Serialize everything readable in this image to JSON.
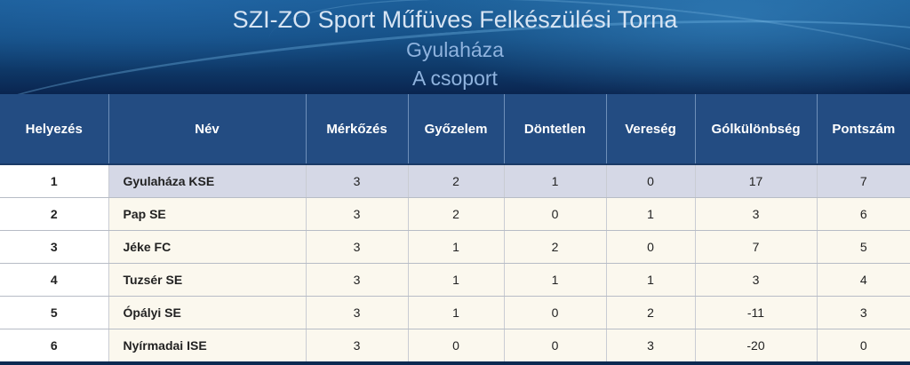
{
  "header": {
    "title": "SZI-ZO Sport Műfüves Felkészülési Torna",
    "subtitle": "Gyulaháza",
    "group": "A csoport"
  },
  "table": {
    "columns": [
      "Helyezés",
      "Név",
      "Mérkőzés",
      "Győzelem",
      "Döntetlen",
      "Vereség",
      "Gólkülönbség",
      "Pontszám"
    ],
    "rows": [
      {
        "rank": "1",
        "name": "Gyulaháza KSE",
        "played": "3",
        "won": "2",
        "drawn": "1",
        "lost": "0",
        "goal_diff": "17",
        "points": "7"
      },
      {
        "rank": "2",
        "name": "Pap SE",
        "played": "3",
        "won": "2",
        "drawn": "0",
        "lost": "1",
        "goal_diff": "3",
        "points": "6"
      },
      {
        "rank": "3",
        "name": "Jéke FC",
        "played": "3",
        "won": "1",
        "drawn": "2",
        "lost": "0",
        "goal_diff": "7",
        "points": "5"
      },
      {
        "rank": "4",
        "name": "Tuzsér SE",
        "played": "3",
        "won": "1",
        "drawn": "1",
        "lost": "1",
        "goal_diff": "3",
        "points": "4"
      },
      {
        "rank": "5",
        "name": "Ópályi SE",
        "played": "3",
        "won": "1",
        "drawn": "0",
        "lost": "2",
        "goal_diff": "-11",
        "points": "3"
      },
      {
        "rank": "6",
        "name": "Nyírmadai ISE",
        "played": "3",
        "won": "0",
        "drawn": "0",
        "lost": "3",
        "goal_diff": "-20",
        "points": "0"
      }
    ]
  },
  "colors": {
    "header_bg": "#234c82",
    "highlight_row": "#d5d8e6",
    "row_bg": "#fbf8ee"
  }
}
